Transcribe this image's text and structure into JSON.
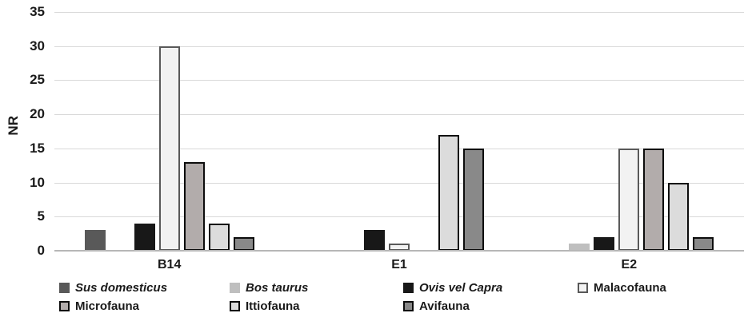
{
  "chart_data": {
    "type": "bar",
    "title": "",
    "xlabel": "",
    "ylabel": "NR",
    "categories": [
      "B14",
      "E1",
      "E2"
    ],
    "series": [
      {
        "name": "Sus domesticus",
        "italic": true,
        "fill": "#595959",
        "border": null,
        "values": [
          3,
          0,
          0
        ]
      },
      {
        "name": "Bos taurus",
        "italic": true,
        "fill": "#bfbfbf",
        "border": null,
        "values": [
          0,
          0,
          1
        ]
      },
      {
        "name": "Ovis vel Capra",
        "italic": true,
        "fill": "#181818",
        "border": null,
        "values": [
          4,
          3,
          2
        ]
      },
      {
        "name": "Malacofauna",
        "italic": false,
        "fill": "#f2f2f2",
        "border": "#595959",
        "values": [
          30,
          1,
          15
        ]
      },
      {
        "name": "Microfauna",
        "italic": false,
        "fill": "#b2acab",
        "border": "#0d0d0d",
        "values": [
          13,
          0,
          15
        ]
      },
      {
        "name": "Ittiofauna",
        "italic": false,
        "fill": "#dcdcdc",
        "border": "#0d0d0d",
        "values": [
          4,
          17,
          10
        ]
      },
      {
        "name": "Avifauna",
        "italic": false,
        "fill": "#898989",
        "border": "#0d0d0d",
        "values": [
          2,
          15,
          2
        ]
      }
    ],
    "ylim": [
      0,
      35
    ],
    "yticks": [
      0,
      5,
      10,
      15,
      20,
      25,
      30,
      35
    ],
    "grid": true,
    "legend_position": "bottom",
    "legend_rows": [
      4,
      3
    ]
  },
  "colors": {
    "background": "#ffffff",
    "gridline": "#d9d9d9",
    "axis_line": "#b7b7b7",
    "text": "#1a1a1a"
  }
}
